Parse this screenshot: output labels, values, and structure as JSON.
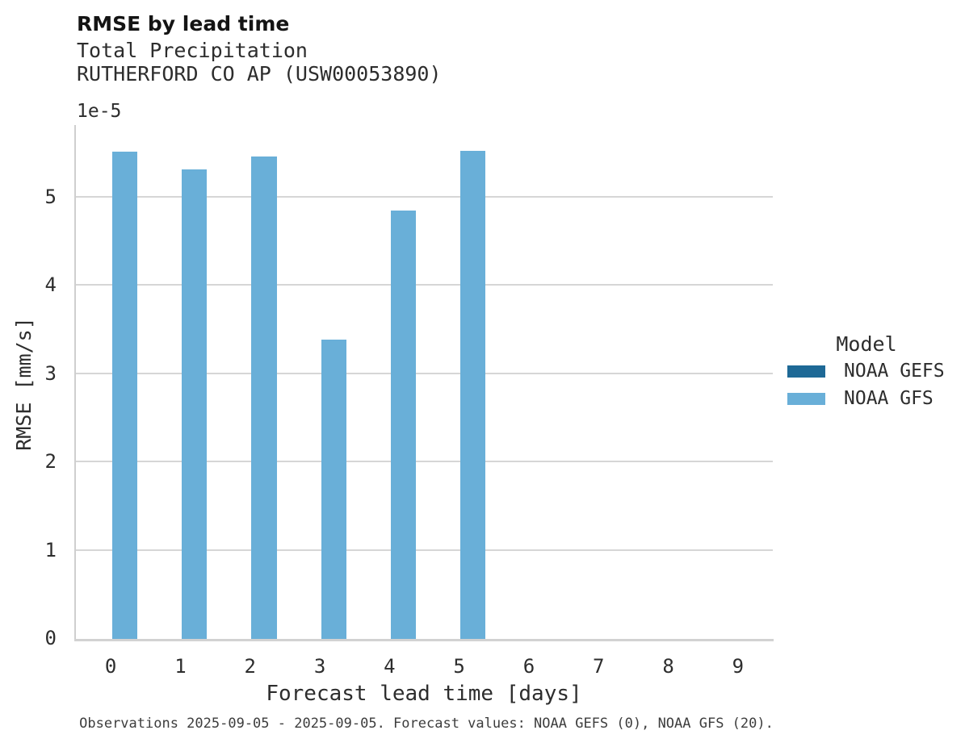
{
  "header": {
    "title": "RMSE by lead time",
    "subtitle": "Total Precipitation",
    "station": "RUTHERFORD CO AP (USW00053890)"
  },
  "chart_data": {
    "type": "bar",
    "title": "RMSE by lead time",
    "subtitle": "Total Precipitation",
    "station": "RUTHERFORD CO AP (USW00053890)",
    "xlabel": "Forecast lead time [days]",
    "ylabel": "RMSE [mm/s]",
    "y_offset_text": "1e-5",
    "categories": [
      0,
      1,
      2,
      3,
      4,
      5,
      6,
      7,
      8,
      9
    ],
    "series": [
      {
        "name": "NOAA GEFS",
        "color": "#1e6996",
        "values": [
          null,
          null,
          null,
          null,
          null,
          null,
          null,
          null,
          null,
          null
        ]
      },
      {
        "name": "NOAA GFS",
        "color": "#69afd8",
        "values": [
          5.52e-05,
          5.32e-05,
          5.46e-05,
          3.39e-05,
          4.85e-05,
          5.53e-05,
          null,
          null,
          null,
          null
        ]
      }
    ],
    "yticks": [
      0,
      1,
      2,
      3,
      4,
      5
    ],
    "ytick_unit": 1e-05,
    "ylim": [
      0,
      5.82e-05
    ],
    "grid": "horizontal",
    "legend_title": "Model",
    "legend_position": "right"
  },
  "legend": {
    "title": "Model",
    "entries": [
      {
        "label": "NOAA GEFS",
        "color": "#1e6996"
      },
      {
        "label": "NOAA GFS",
        "color": "#69afd8"
      }
    ]
  },
  "footer": {
    "text": "Observations 2025-09-05 - 2025-09-05. Forecast values: NOAA GEFS (0), NOAA GFS (20)."
  }
}
